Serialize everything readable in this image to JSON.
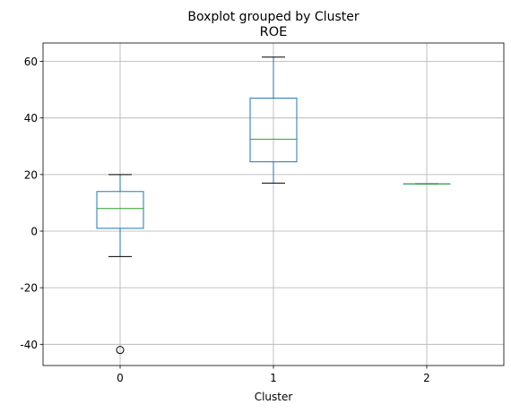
{
  "chart_data": {
    "type": "boxplot",
    "suptitle": "Boxplot grouped by Cluster",
    "title": "ROE",
    "xlabel": "Cluster",
    "ylabel": "",
    "categories": [
      "0",
      "1",
      "2"
    ],
    "ylim": [
      -47.5,
      66.5
    ],
    "yticks": [
      -40,
      -20,
      0,
      20,
      40,
      60
    ],
    "grid": true,
    "box_color": "#1f77b4",
    "median_color": "#2ca02c",
    "whisker_cap_color": "#000000",
    "boxes": [
      {
        "category": "0",
        "whisker_low": -9,
        "q1": 1,
        "median": 8,
        "q3": 14,
        "whisker_high": 20,
        "fliers": [
          -42
        ]
      },
      {
        "category": "1",
        "whisker_low": 17,
        "q1": 24.5,
        "median": 32.5,
        "q3": 47,
        "whisker_high": 61.5,
        "fliers": []
      },
      {
        "category": "2",
        "whisker_low": 16.7,
        "q1": 16.7,
        "median": 16.7,
        "q3": 16.7,
        "whisker_high": 16.7,
        "fliers": []
      }
    ]
  }
}
